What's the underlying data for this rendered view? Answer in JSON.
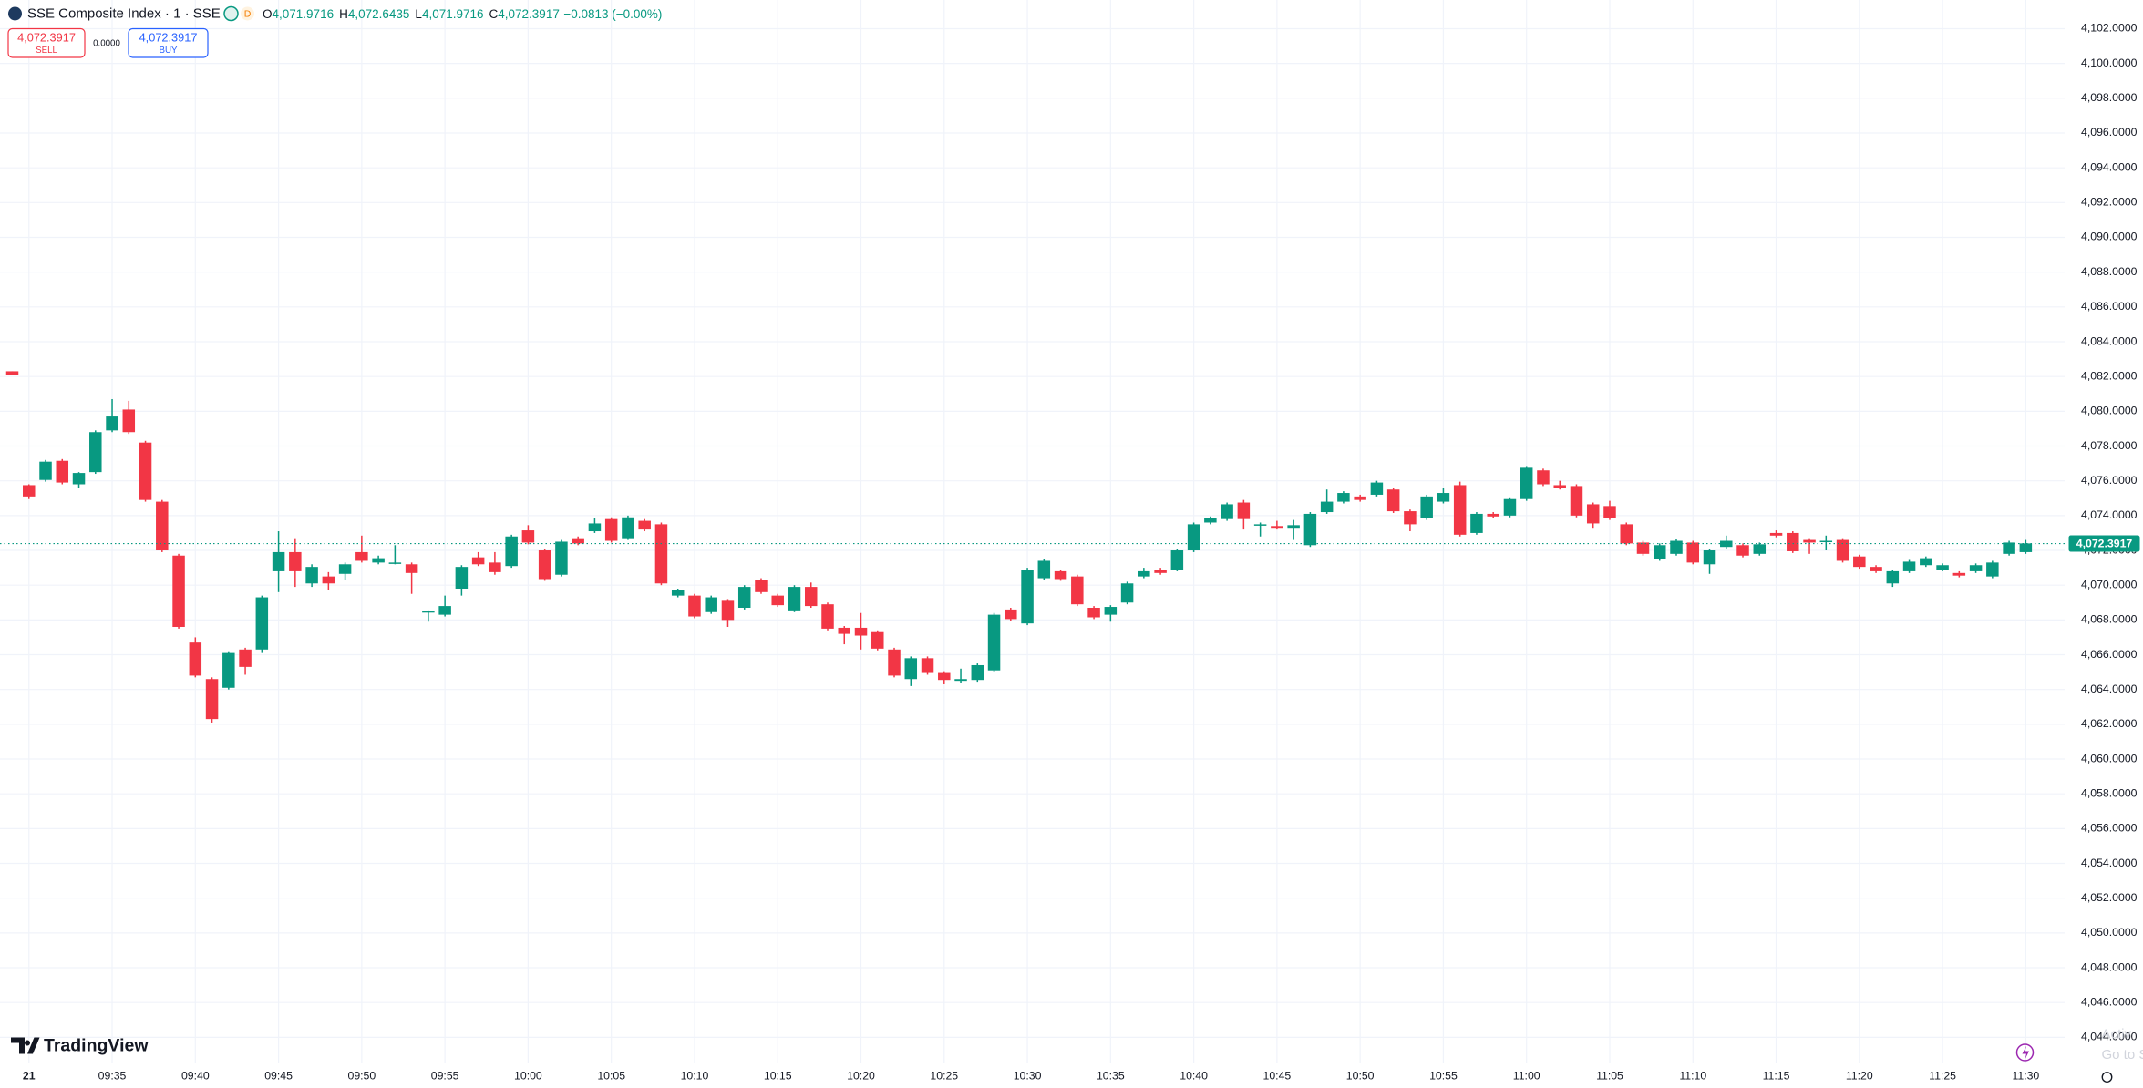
{
  "header": {
    "symbol": "SSE Composite Index · 1 · SSE",
    "badge": "D",
    "ohlc": [
      {
        "key": "O",
        "value": "4,071.9716"
      },
      {
        "key": "H",
        "value": "4,072.6435"
      },
      {
        "key": "L",
        "value": "4,071.9716"
      },
      {
        "key": "C",
        "value": "4,072.3917"
      }
    ],
    "change": "−0.0813 (−0.00%)"
  },
  "trade": {
    "sell_price": "4,072.3917",
    "sell_label": "SELL",
    "spread": "0.0000",
    "buy_price": "4,072.3917",
    "buy_label": "BUY"
  },
  "brand": "TradingView",
  "watermark": [
    "Activ",
    "Go to S"
  ],
  "chart_data": {
    "type": "candlestick",
    "up_color": "#089981",
    "down_color": "#f23645",
    "grid": true,
    "categories": [
      null,
      "21",
      null,
      null,
      null,
      null,
      "09:35",
      null,
      null,
      null,
      null,
      "09:40",
      null,
      null,
      null,
      null,
      "09:45",
      null,
      null,
      null,
      null,
      "09:50",
      null,
      null,
      null,
      null,
      "09:55",
      null,
      null,
      null,
      null,
      "10:00",
      null,
      null,
      null,
      null,
      "10:05",
      null,
      null,
      null,
      null,
      "10:10",
      null,
      null,
      null,
      null,
      "10:15",
      null,
      null,
      null,
      null,
      "10:20",
      null,
      null,
      null,
      null,
      "10:25",
      null,
      null,
      null,
      null,
      "10:30",
      null,
      null,
      null,
      null,
      "10:35",
      null,
      null,
      null,
      null,
      "10:40",
      null,
      null,
      null,
      null,
      "10:45",
      null,
      null,
      null,
      null,
      "10:50",
      null,
      null,
      null,
      null,
      "10:55",
      null,
      null,
      null,
      null,
      "11:00",
      null,
      null,
      null,
      null,
      "11:05",
      null,
      null,
      null,
      null,
      "11:10",
      null,
      null,
      null,
      null,
      "11:15",
      null,
      null,
      null,
      null,
      "11:20",
      null,
      null,
      null,
      null,
      "11:25",
      null,
      null,
      null,
      null,
      "11:30"
    ],
    "open": [
      4082.3,
      4075.75,
      4076.05,
      4077.15,
      4075.8,
      4076.5,
      4078.9,
      4080.1,
      4078.2,
      4074.8,
      4071.7,
      4066.7,
      4064.6,
      4064.1,
      4066.3,
      4066.3,
      4070.8,
      4071.9,
      4070.1,
      4070.5,
      4070.65,
      4071.9,
      4071.3,
      4071.25,
      4071.2,
      4068.45,
      4068.3,
      4069.8,
      4071.6,
      4071.3,
      4071.1,
      4073.15,
      4072.0,
      4070.6,
      4072.7,
      4073.1,
      4073.8,
      4072.7,
      4073.7,
      4073.5,
      4069.4,
      4069.4,
      4068.45,
      4069.1,
      4068.7,
      4070.3,
      4069.4,
      4068.55,
      4069.9,
      4068.9,
      4067.55,
      4067.55,
      4067.3,
      4066.3,
      4064.6,
      4065.8,
      4064.95,
      4064.5,
      4064.55,
      4065.1,
      4068.6,
      4067.8,
      4070.4,
      4070.8,
      4070.5,
      4068.7,
      4068.3,
      4069.0,
      4070.5,
      4070.9,
      4070.9,
      4072.0,
      4073.6,
      4073.8,
      4074.75,
      4073.45,
      4073.4,
      4073.3,
      4072.3,
      4074.2,
      4074.8,
      4075.1,
      4075.2,
      4075.5,
      4074.25,
      4073.85,
      4074.8,
      4075.75,
      4073.0,
      4074.1,
      4074.0,
      4074.95,
      4076.6,
      4075.75,
      4075.7,
      4074.65,
      4074.55,
      4073.5,
      4072.45,
      4071.5,
      4071.8,
      4072.45,
      4071.2,
      4072.2,
      4072.3,
      4071.8,
      4073.0,
      4073.0,
      4072.6,
      4072.5,
      4072.6,
      4071.65,
      4071.05,
      4070.1,
      4070.8,
      4071.15,
      4070.9,
      4070.7,
      4070.8,
      4070.5,
      4071.8,
      4071.9
    ],
    "high": [
      4082.3,
      4075.8,
      4077.2,
      4077.25,
      4076.5,
      4078.9,
      4080.7,
      4080.6,
      4078.3,
      4074.9,
      4071.8,
      4067.0,
      4064.7,
      4066.2,
      4066.4,
      4069.4,
      4073.1,
      4072.7,
      4071.2,
      4070.75,
      4071.3,
      4072.85,
      4071.7,
      4072.3,
      4071.3,
      4068.55,
      4069.4,
      4071.15,
      4071.9,
      4071.9,
      4072.9,
      4073.45,
      4072.1,
      4072.6,
      4072.8,
      4073.85,
      4073.9,
      4074.0,
      4073.8,
      4073.6,
      4069.8,
      4069.5,
      4069.4,
      4069.2,
      4070.0,
      4070.4,
      4069.5,
      4070.0,
      4070.15,
      4069.0,
      4067.65,
      4068.4,
      4067.4,
      4066.4,
      4065.9,
      4065.9,
      4065.05,
      4065.2,
      4065.5,
      4068.4,
      4068.7,
      4071.0,
      4071.5,
      4070.9,
      4070.6,
      4068.8,
      4068.85,
      4070.2,
      4071.0,
      4071.0,
      4072.1,
      4073.6,
      4073.95,
      4074.75,
      4074.9,
      4073.6,
      4073.7,
      4073.75,
      4074.2,
      4075.5,
      4075.4,
      4075.2,
      4076.0,
      4075.6,
      4074.35,
      4075.2,
      4075.6,
      4075.95,
      4074.2,
      4074.2,
      4075.05,
      4076.85,
      4076.7,
      4076.0,
      4075.8,
      4074.75,
      4074.85,
      4073.6,
      4072.55,
      4072.4,
      4072.65,
      4072.55,
      4072.1,
      4072.85,
      4072.4,
      4072.45,
      4073.15,
      4073.1,
      4072.7,
      4072.85,
      4072.7,
      4071.75,
      4071.15,
      4070.9,
      4071.45,
      4071.65,
      4071.25,
      4070.8,
      4071.25,
      4071.4,
      4072.55,
      4072.6
    ],
    "low": [
      4082.1,
      4074.95,
      4075.95,
      4075.8,
      4075.6,
      4076.4,
      4078.8,
      4078.7,
      4074.8,
      4071.9,
      4067.5,
      4064.7,
      4062.1,
      4064.0,
      4064.85,
      4066.1,
      4069.6,
      4069.9,
      4069.9,
      4069.7,
      4070.3,
      4071.3,
      4071.2,
      4071.2,
      4069.5,
      4067.9,
      4068.2,
      4069.4,
      4071.1,
      4070.6,
      4071.0,
      4072.35,
      4070.25,
      4070.5,
      4072.3,
      4073.0,
      4072.45,
      4072.6,
      4073.1,
      4070.0,
      4069.3,
      4068.1,
      4068.35,
      4067.6,
      4068.6,
      4069.5,
      4068.75,
      4068.45,
      4068.7,
      4067.4,
      4066.6,
      4066.3,
      4066.25,
      4064.7,
      4064.2,
      4064.85,
      4064.3,
      4064.4,
      4064.45,
      4065.0,
      4067.95,
      4067.7,
      4070.3,
      4070.25,
      4068.8,
      4068.05,
      4067.9,
      4068.9,
      4070.4,
      4070.6,
      4070.8,
      4071.9,
      4073.5,
      4073.7,
      4073.2,
      4072.8,
      4073.2,
      4072.6,
      4072.2,
      4074.1,
      4074.7,
      4074.8,
      4075.1,
      4074.15,
      4073.1,
      4073.75,
      4074.7,
      4072.8,
      4072.9,
      4073.85,
      4073.9,
      4074.85,
      4075.7,
      4075.5,
      4073.9,
      4073.3,
      4073.75,
      4072.3,
      4071.7,
      4071.4,
      4071.7,
      4071.2,
      4070.65,
      4072.1,
      4071.6,
      4071.7,
      4072.75,
      4071.85,
      4071.8,
      4072.0,
      4071.3,
      4070.95,
      4070.7,
      4069.9,
      4070.7,
      4071.05,
      4070.8,
      4070.45,
      4070.7,
      4070.4,
      4071.7,
      4071.8
    ],
    "close": [
      4082.1,
      4075.1,
      4077.1,
      4075.9,
      4076.45,
      4078.8,
      4079.7,
      4078.8,
      4074.9,
      4072.0,
      4067.6,
      4064.8,
      4062.3,
      4066.1,
      4065.3,
      4069.3,
      4071.9,
      4070.8,
      4071.05,
      4070.1,
      4071.2,
      4071.4,
      4071.55,
      4071.3,
      4070.7,
      4068.5,
      4068.8,
      4071.05,
      4071.2,
      4070.75,
      4072.8,
      4072.45,
      4070.35,
      4072.5,
      4072.4,
      4073.55,
      4072.55,
      4073.9,
      4073.2,
      4070.1,
      4069.7,
      4068.2,
      4069.3,
      4068.0,
      4069.9,
      4069.6,
      4068.85,
      4069.9,
      4068.8,
      4067.5,
      4067.2,
      4067.1,
      4066.35,
      4064.8,
      4065.8,
      4064.95,
      4064.55,
      4064.6,
      4065.4,
      4068.3,
      4068.05,
      4070.9,
      4071.4,
      4070.35,
      4068.9,
      4068.15,
      4068.75,
      4070.1,
      4070.8,
      4070.7,
      4072.0,
      4073.5,
      4073.85,
      4074.65,
      4073.8,
      4073.5,
      4073.3,
      4073.45,
      4074.1,
      4074.8,
      4075.3,
      4074.9,
      4075.9,
      4074.25,
      4073.5,
      4075.1,
      4075.3,
      4072.9,
      4074.1,
      4073.95,
      4074.95,
      4076.75,
      4075.8,
      4075.6,
      4074.0,
      4073.55,
      4073.85,
      4072.4,
      4071.8,
      4072.3,
      4072.55,
      4071.3,
      4072.0,
      4072.55,
      4071.7,
      4072.35,
      4072.85,
      4071.95,
      4072.45,
      4072.55,
      4071.4,
      4071.05,
      4070.8,
      4070.8,
      4071.35,
      4071.55,
      4071.15,
      4070.55,
      4071.15,
      4071.3,
      4072.45,
      4072.4
    ],
    "last_price": {
      "value": 4072.3917,
      "label": "4,072.3917"
    },
    "ylim": [
      4042.5,
      4103.65
    ],
    "yticks": [
      {
        "value": 4044,
        "label": "4,044.0000"
      },
      {
        "value": 4046,
        "label": "4,046.0000"
      },
      {
        "value": 4048,
        "label": "4,048.0000"
      },
      {
        "value": 4050,
        "label": "4,050.0000"
      },
      {
        "value": 4052,
        "label": "4,052.0000"
      },
      {
        "value": 4054,
        "label": "4,054.0000"
      },
      {
        "value": 4056,
        "label": "4,056.0000"
      },
      {
        "value": 4058,
        "label": "4,058.0000"
      },
      {
        "value": 4060,
        "label": "4,060.0000"
      },
      {
        "value": 4062,
        "label": "4,062.0000"
      },
      {
        "value": 4064,
        "label": "4,064.0000"
      },
      {
        "value": 4066,
        "label": "4,066.0000"
      },
      {
        "value": 4068,
        "label": "4,068.0000"
      },
      {
        "value": 4070,
        "label": "4,070.0000"
      },
      {
        "value": 4072,
        "label": "4,072.0000"
      },
      {
        "value": 4074,
        "label": "4,074.0000"
      },
      {
        "value": 4076,
        "label": "4,076.0000"
      },
      {
        "value": 4078,
        "label": "4,078.0000"
      },
      {
        "value": 4080,
        "label": "4,080.0000"
      },
      {
        "value": 4082,
        "label": "4,082.0000"
      },
      {
        "value": 4084,
        "label": "4,084.0000"
      },
      {
        "value": 4086,
        "label": "4,086.0000"
      },
      {
        "value": 4088,
        "label": "4,088.0000"
      },
      {
        "value": 4090,
        "label": "4,090.0000"
      },
      {
        "value": 4092,
        "label": "4,092.0000"
      },
      {
        "value": 4094,
        "label": "4,094.0000"
      },
      {
        "value": 4096,
        "label": "4,096.0000"
      },
      {
        "value": 4098,
        "label": "4,098.0000"
      },
      {
        "value": 4100,
        "label": "4,100.0000"
      },
      {
        "value": 4102,
        "label": "4,102.0000"
      }
    ]
  }
}
